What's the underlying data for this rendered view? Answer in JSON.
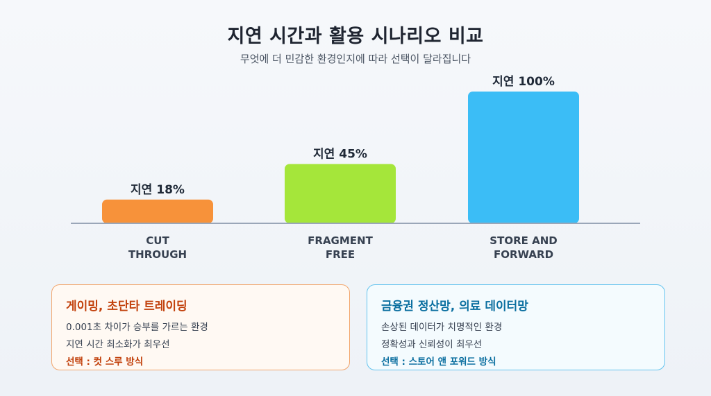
{
  "header": {
    "title": "지연 시간과 활용 시나리오 비교",
    "subtitle": "무엇에 더 민감한 환경인지에 따라 선택이 달라집니다"
  },
  "chart_data": {
    "type": "bar",
    "categories": [
      [
        "CUT",
        "THROUGH"
      ],
      [
        "FRAGMENT",
        "FREE"
      ],
      [
        "STORE AND",
        "FORWARD"
      ]
    ],
    "values": [
      18,
      45,
      100
    ],
    "data_labels": [
      "지연 18%",
      "지연 45%",
      "지연 100%"
    ],
    "colors": [
      "#f7923a",
      "#a5e63a",
      "#3bbdf6"
    ],
    "ylim": [
      0,
      100
    ],
    "grid": false,
    "axis_color": "#9aa6b8"
  },
  "cards": [
    {
      "title": "게이밍, 초단타 트레이딩",
      "lines": [
        "0.001초 차이가 승부를 가르는 환경",
        "지연 시간 최소화가 최우선"
      ],
      "choice": "선택 : 컷 스루 방식"
    },
    {
      "title": "금융권 정산망, 의료 데이터망",
      "lines": [
        "손상된 데이터가 치명적인 환경",
        "정확성과 신뢰성이 최우선"
      ],
      "choice": "선택 : 스토어 앤 포워드 방식"
    }
  ]
}
